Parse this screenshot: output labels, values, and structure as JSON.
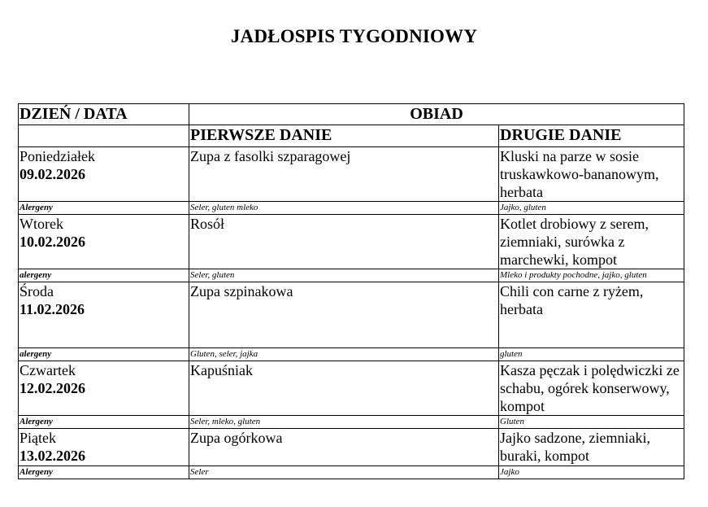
{
  "title": "JADŁOSPIS TYGODNIOWY",
  "headers": {
    "day": "DZIEŃ / DATA",
    "lunch": "OBIAD",
    "first": "PIERWSZE DANIE",
    "second": "DRUGIE DANIE"
  },
  "days": [
    {
      "day": "Poniedziałek",
      "date": "09.02.2026",
      "first": "Zupa z fasolki szparagowej",
      "second": "Kluski na parze w sosie truskawkowo-bananowym, herbata",
      "allergen_label": "Alergeny",
      "first_allergens": "Seler, gluten mleko",
      "second_allergens": "Jajko, gluten"
    },
    {
      "day": "Wtorek",
      "date": "10.02.2026",
      "first": "Rosół",
      "second": "Kotlet drobiowy z serem, ziemniaki, surówka z marchewki, kompot",
      "allergen_label": "alergeny",
      "first_allergens": "Seler, gluten",
      "second_allergens": "Mleko i produkty pochodne, jajko, gluten"
    },
    {
      "day": "Środa",
      "date": "11.02.2026",
      "first": "Zupa szpinakowa",
      "second": "Chili con carne z ryżem, herbata",
      "allergen_label": "alergeny",
      "first_allergens": "Gluten, seler, jajka",
      "second_allergens": "gluten"
    },
    {
      "day": "Czwartek",
      "date": "12.02.2026",
      "first": "Kapuśniak",
      "second": "Kasza pęczak i polędwiczki ze schabu, ogórek konserwowy, kompot",
      "allergen_label": "Alergeny",
      "first_allergens": "Seler,  mleko, gluten",
      "second_allergens": "Gluten"
    },
    {
      "day": "Piątek",
      "date": "13.02.2026",
      "first": "Zupa ogórkowa",
      "second": "Jajko sadzone, ziemniaki, buraki, kompot",
      "allergen_label": "Alergeny",
      "first_allergens": "Seler",
      "second_allergens": "Jajko"
    }
  ]
}
